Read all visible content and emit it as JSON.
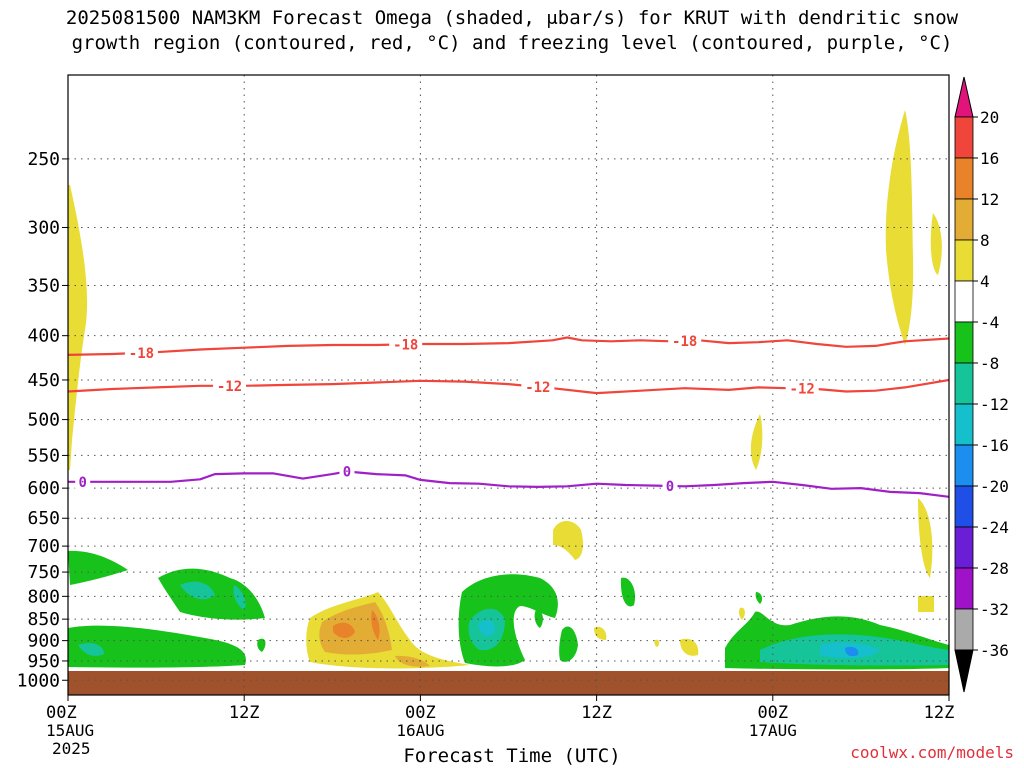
{
  "title": {
    "line1": "2025081500 NAM3KM Forecast Omega (shaded, μbar/s) for KRUT with dendritic snow",
    "line2": "growth region (contoured, red, °C) and freezing level (contoured, purple, °C)"
  },
  "watermark": "coolwx.com/models",
  "colors": {
    "dgz": "#f0453a",
    "freezing": "#a020c8",
    "ground": "#a0522d",
    "grid": "#555555"
  },
  "chart_data": {
    "type": "heatmap",
    "xlabel": "Forecast Time (UTC)",
    "ylabel": "",
    "y_axis": {
      "scale": "log-pressure",
      "inverted": true,
      "ylim_hPa": [
        1040,
        200
      ],
      "ticks": [
        250,
        300,
        350,
        400,
        450,
        500,
        550,
        600,
        650,
        700,
        750,
        800,
        850,
        900,
        950,
        1000
      ],
      "grid": "dotted"
    },
    "x_axis": {
      "xlim_hours": [
        0,
        60
      ],
      "ticks": [
        {
          "hour": 0,
          "label": "00Z",
          "sub": "15AUG",
          "sub2": "2025"
        },
        {
          "hour": 12,
          "label": "12Z",
          "sub": "",
          "sub2": ""
        },
        {
          "hour": 24,
          "label": "00Z",
          "sub": "16AUG",
          "sub2": ""
        },
        {
          "hour": 36,
          "label": "12Z",
          "sub": "",
          "sub2": ""
        },
        {
          "hour": 48,
          "label": "00Z",
          "sub": "17AUG",
          "sub2": ""
        },
        {
          "hour": 60,
          "label": "12Z",
          "sub": "",
          "sub2": ""
        }
      ]
    },
    "colorbar": {
      "levels": [
        20,
        16,
        12,
        8,
        4,
        -4,
        -8,
        -12,
        -16,
        -20,
        -24,
        -28,
        -32,
        -36
      ],
      "fills": [
        {
          "from": 20,
          "to": 16,
          "color": "#f0453a"
        },
        {
          "from": 16,
          "to": 12,
          "color": "#e8832a"
        },
        {
          "from": 12,
          "to": 8,
          "color": "#e3ad35"
        },
        {
          "from": 8,
          "to": 4,
          "color": "#e8dc35"
        },
        {
          "from": 4,
          "to": -4,
          "color": "#ffffff"
        },
        {
          "from": -4,
          "to": -8,
          "color": "#17c21a"
        },
        {
          "from": -8,
          "to": -12,
          "color": "#16c49a"
        },
        {
          "from": -12,
          "to": -16,
          "color": "#15bfcb"
        },
        {
          "from": -16,
          "to": -20,
          "color": "#1b8ef0"
        },
        {
          "from": -20,
          "to": -24,
          "color": "#1f4fe6"
        },
        {
          "from": -24,
          "to": -28,
          "color": "#6a1fd6"
        },
        {
          "from": -28,
          "to": -32,
          "color": "#a012c8"
        },
        {
          "from": -32,
          "to": -36,
          "color": "#aaaaaa"
        }
      ],
      "top_arrow_color": "#e0147a",
      "bottom_arrow_color": "#000000"
    },
    "contours": [
      {
        "name": "-18",
        "label": "-18",
        "color": "#f0453a",
        "points": [
          [
            0,
            421
          ],
          [
            3,
            420
          ],
          [
            6,
            418
          ],
          [
            9,
            415
          ],
          [
            12,
            413
          ],
          [
            15,
            411
          ],
          [
            18,
            410
          ],
          [
            21,
            410
          ],
          [
            24,
            409
          ],
          [
            27,
            409
          ],
          [
            30,
            408
          ],
          [
            33,
            405
          ],
          [
            34,
            402
          ],
          [
            35,
            405
          ],
          [
            37,
            406
          ],
          [
            39,
            405
          ],
          [
            41,
            406
          ],
          [
            43,
            405
          ],
          [
            45,
            408
          ],
          [
            47,
            407
          ],
          [
            49,
            405
          ],
          [
            51,
            409
          ],
          [
            53,
            412
          ],
          [
            55,
            411
          ],
          [
            57,
            406
          ],
          [
            60,
            403
          ]
        ],
        "labels_at": [
          5,
          23,
          42
        ]
      },
      {
        "name": "-12",
        "label": "-12",
        "color": "#f0453a",
        "points": [
          [
            0,
            464
          ],
          [
            3,
            461
          ],
          [
            6,
            459
          ],
          [
            9,
            457
          ],
          [
            12,
            457
          ],
          [
            15,
            456
          ],
          [
            18,
            455
          ],
          [
            21,
            453
          ],
          [
            24,
            451
          ],
          [
            27,
            452
          ],
          [
            30,
            455
          ],
          [
            33,
            460
          ],
          [
            36,
            466
          ],
          [
            39,
            463
          ],
          [
            42,
            460
          ],
          [
            45,
            462
          ],
          [
            47,
            459
          ],
          [
            49,
            460
          ],
          [
            51,
            461
          ],
          [
            53,
            464
          ],
          [
            55,
            463
          ],
          [
            57,
            459
          ],
          [
            60,
            450
          ]
        ],
        "labels_at": [
          11,
          32,
          50
        ]
      },
      {
        "name": "0",
        "label": "0",
        "color": "#a020c8",
        "points": [
          [
            0,
            590
          ],
          [
            4,
            590
          ],
          [
            7,
            590
          ],
          [
            9,
            586
          ],
          [
            10,
            578
          ],
          [
            12,
            577
          ],
          [
            14,
            577
          ],
          [
            16,
            585
          ],
          [
            18,
            578
          ],
          [
            19,
            574
          ],
          [
            21,
            578
          ],
          [
            23,
            580
          ],
          [
            24,
            587
          ],
          [
            26,
            592
          ],
          [
            28,
            593
          ],
          [
            30,
            597
          ],
          [
            32,
            598
          ],
          [
            34,
            597
          ],
          [
            36,
            593
          ],
          [
            38,
            595
          ],
          [
            40,
            596
          ],
          [
            42,
            597
          ],
          [
            44,
            595
          ],
          [
            46,
            592
          ],
          [
            48,
            590
          ],
          [
            50,
            595
          ],
          [
            52,
            601
          ],
          [
            54,
            600
          ],
          [
            56,
            606
          ],
          [
            58,
            608
          ],
          [
            60,
            614
          ]
        ],
        "labels_at": [
          1,
          19,
          41
        ]
      }
    ]
  }
}
